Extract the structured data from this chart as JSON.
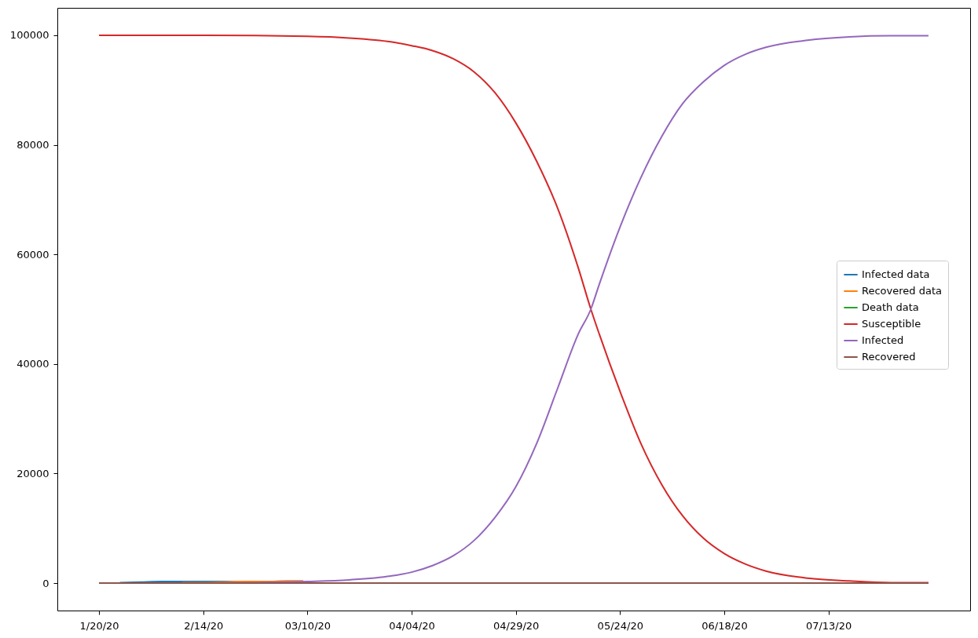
{
  "chart_data": {
    "type": "line",
    "xlim": [
      "2020-01-10",
      "2020-08-16"
    ],
    "ylim": [
      -5000,
      105000
    ],
    "xticks": [
      {
        "value": "2020-01-20",
        "label": "1/20/20"
      },
      {
        "value": "2020-02-14",
        "label": "2/14/20"
      },
      {
        "value": "2020-03-10",
        "label": "03/10/20"
      },
      {
        "value": "2020-04-04",
        "label": "04/04/20"
      },
      {
        "value": "2020-04-29",
        "label": "04/29/20"
      },
      {
        "value": "2020-05-24",
        "label": "05/24/20"
      },
      {
        "value": "2020-06-18",
        "label": "06/18/20"
      },
      {
        "value": "2020-07-13",
        "label": "07/13/20"
      }
    ],
    "yticks": [
      0,
      20000,
      40000,
      60000,
      80000,
      100000
    ],
    "grid": false,
    "legend": "right",
    "line_style": "solid",
    "series": [
      {
        "name": "Infected data",
        "color": "#1f77b4",
        "x": [
          "2020-01-25",
          "2020-01-30",
          "2020-02-04",
          "2020-02-09",
          "2020-02-14",
          "2020-02-19",
          "2020-02-24"
        ],
        "values": [
          100,
          200,
          300,
          300,
          300,
          300,
          200
        ]
      },
      {
        "name": "Recovered data",
        "color": "#ff7f0e",
        "x": [
          "2020-02-09",
          "2020-02-14",
          "2020-02-19",
          "2020-02-24",
          "2020-02-29",
          "2020-03-05",
          "2020-03-09"
        ],
        "values": [
          100,
          100,
          200,
          300,
          300,
          400,
          400
        ]
      },
      {
        "name": "Death data",
        "color": "#2ca02c",
        "values": [
          null
        ]
      },
      {
        "name": "Susceptible",
        "color": "#d62728",
        "x": [
          "2020-01-20",
          "2020-02-14",
          "2020-03-10",
          "2020-03-20",
          "2020-03-30",
          "2020-04-04",
          "2020-04-09",
          "2020-04-14",
          "2020-04-19",
          "2020-04-24",
          "2020-04-29",
          "2020-05-04",
          "2020-05-09",
          "2020-05-14",
          "2020-05-17",
          "2020-05-19",
          "2020-05-24",
          "2020-05-29",
          "2020-06-03",
          "2020-06-08",
          "2020-06-13",
          "2020-06-18",
          "2020-06-23",
          "2020-06-28",
          "2020-07-08",
          "2020-07-18",
          "2020-07-28",
          "2020-08-06"
        ],
        "values": [
          100000,
          100000,
          99800,
          99500,
          98800,
          98100,
          97200,
          95700,
          93300,
          89500,
          84000,
          77000,
          68500,
          57500,
          50000,
          45500,
          35000,
          25500,
          18000,
          12300,
          8200,
          5400,
          3500,
          2200,
          900,
          400,
          100,
          100
        ]
      },
      {
        "name": "Infected",
        "color": "#9467bd",
        "x": [
          "2020-01-20",
          "2020-02-14",
          "2020-03-10",
          "2020-03-20",
          "2020-03-30",
          "2020-04-04",
          "2020-04-09",
          "2020-04-14",
          "2020-04-19",
          "2020-04-24",
          "2020-04-29",
          "2020-05-04",
          "2020-05-09",
          "2020-05-14",
          "2020-05-17",
          "2020-05-19",
          "2020-05-24",
          "2020-05-29",
          "2020-06-03",
          "2020-06-08",
          "2020-06-13",
          "2020-06-18",
          "2020-06-23",
          "2020-06-28",
          "2020-07-08",
          "2020-07-18",
          "2020-07-28",
          "2020-08-06"
        ],
        "values": [
          0,
          0,
          300,
          600,
          1300,
          2000,
          3200,
          5000,
          7800,
          12000,
          17600,
          25500,
          35500,
          45500,
          50000,
          54500,
          65000,
          74000,
          81500,
          87500,
          91500,
          94500,
          96500,
          97800,
          99100,
          99700,
          99900,
          99900
        ]
      },
      {
        "name": "Recovered",
        "color": "#8c564b",
        "x": [
          "2020-01-20",
          "2020-08-06"
        ],
        "values": [
          0,
          0
        ]
      }
    ]
  }
}
